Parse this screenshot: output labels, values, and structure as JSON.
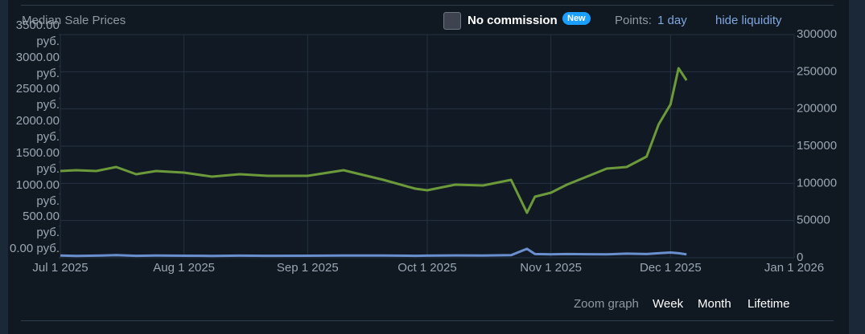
{
  "header": {
    "title": "Median Sale Prices",
    "checkbox_label": "No commission",
    "badge": "New",
    "points_label": "Points:",
    "points_value": "1 day",
    "liquidity": "hide liquidity"
  },
  "chart_data": {
    "type": "line",
    "x": [
      "2025-07-01",
      "2025-07-05",
      "2025-07-10",
      "2025-07-15",
      "2025-07-20",
      "2025-07-25",
      "2025-08-01",
      "2025-08-08",
      "2025-08-15",
      "2025-08-22",
      "2025-09-01",
      "2025-09-10",
      "2025-09-20",
      "2025-09-28",
      "2025-10-01",
      "2025-10-08",
      "2025-10-15",
      "2025-10-22",
      "2025-10-26",
      "2025-10-28",
      "2025-11-01",
      "2025-11-05",
      "2025-11-10",
      "2025-11-15",
      "2025-11-20",
      "2025-11-25",
      "2025-11-28",
      "2025-12-01",
      "2025-12-03",
      "2025-12-05"
    ],
    "xlim": [
      "2025-07-01",
      "2026-01-01"
    ],
    "xticks": [
      {
        "value": "2025-07-01",
        "label": "Jul 1 2025"
      },
      {
        "value": "2025-08-01",
        "label": "Aug 1 2025"
      },
      {
        "value": "2025-09-01",
        "label": "Sep 1 2025"
      },
      {
        "value": "2025-10-01",
        "label": "Oct 1 2025"
      },
      {
        "value": "2025-11-01",
        "label": "Nov 1 2025"
      },
      {
        "value": "2025-12-01",
        "label": "Dec 1 2025"
      },
      {
        "value": "2026-01-01",
        "label": "Jan 1 2026"
      }
    ],
    "ylim": [
      0,
      3500
    ],
    "yticks": [
      {
        "value": 0,
        "label": "0.00 руб."
      },
      {
        "value": 500,
        "label": "500.00 руб."
      },
      {
        "value": 1000,
        "label": "1000.00 руб."
      },
      {
        "value": 1500,
        "label": "1500.00 руб."
      },
      {
        "value": 2000,
        "label": "2000.00 руб."
      },
      {
        "value": 2500,
        "label": "2500.00 руб."
      },
      {
        "value": 3000,
        "label": "3000.00 руб."
      },
      {
        "value": 3500,
        "label": "3500.00 руб."
      }
    ],
    "y2lim": [
      0,
      300000
    ],
    "y2ticks": [
      0,
      50000,
      100000,
      150000,
      200000,
      250000,
      300000
    ],
    "grid": true,
    "series": [
      {
        "color": "#6c9a3a",
        "values": [
          1360,
          1372,
          1360,
          1423,
          1309,
          1360,
          1335,
          1272,
          1309,
          1284,
          1284,
          1372,
          1221,
          1083,
          1058,
          1146,
          1133,
          1221,
          705,
          957,
          1020,
          1146,
          1272,
          1398,
          1423,
          1586,
          2090,
          2405,
          2971,
          2782
        ]
      },
      {
        "color": "#6a8fcf",
        "axis": "y2",
        "values": [
          3000,
          2500,
          2800,
          3500,
          2600,
          2900,
          2700,
          2500,
          2800,
          2600,
          2700,
          3000,
          2900,
          2600,
          2800,
          3100,
          3000,
          3500,
          12000,
          5000,
          4500,
          5000,
          4800,
          4500,
          5500,
          5000,
          6000,
          7000,
          6000,
          4500
        ]
      }
    ]
  },
  "zoom": {
    "label": "Zoom graph",
    "options": [
      "Week",
      "Month",
      "Lifetime"
    ]
  }
}
